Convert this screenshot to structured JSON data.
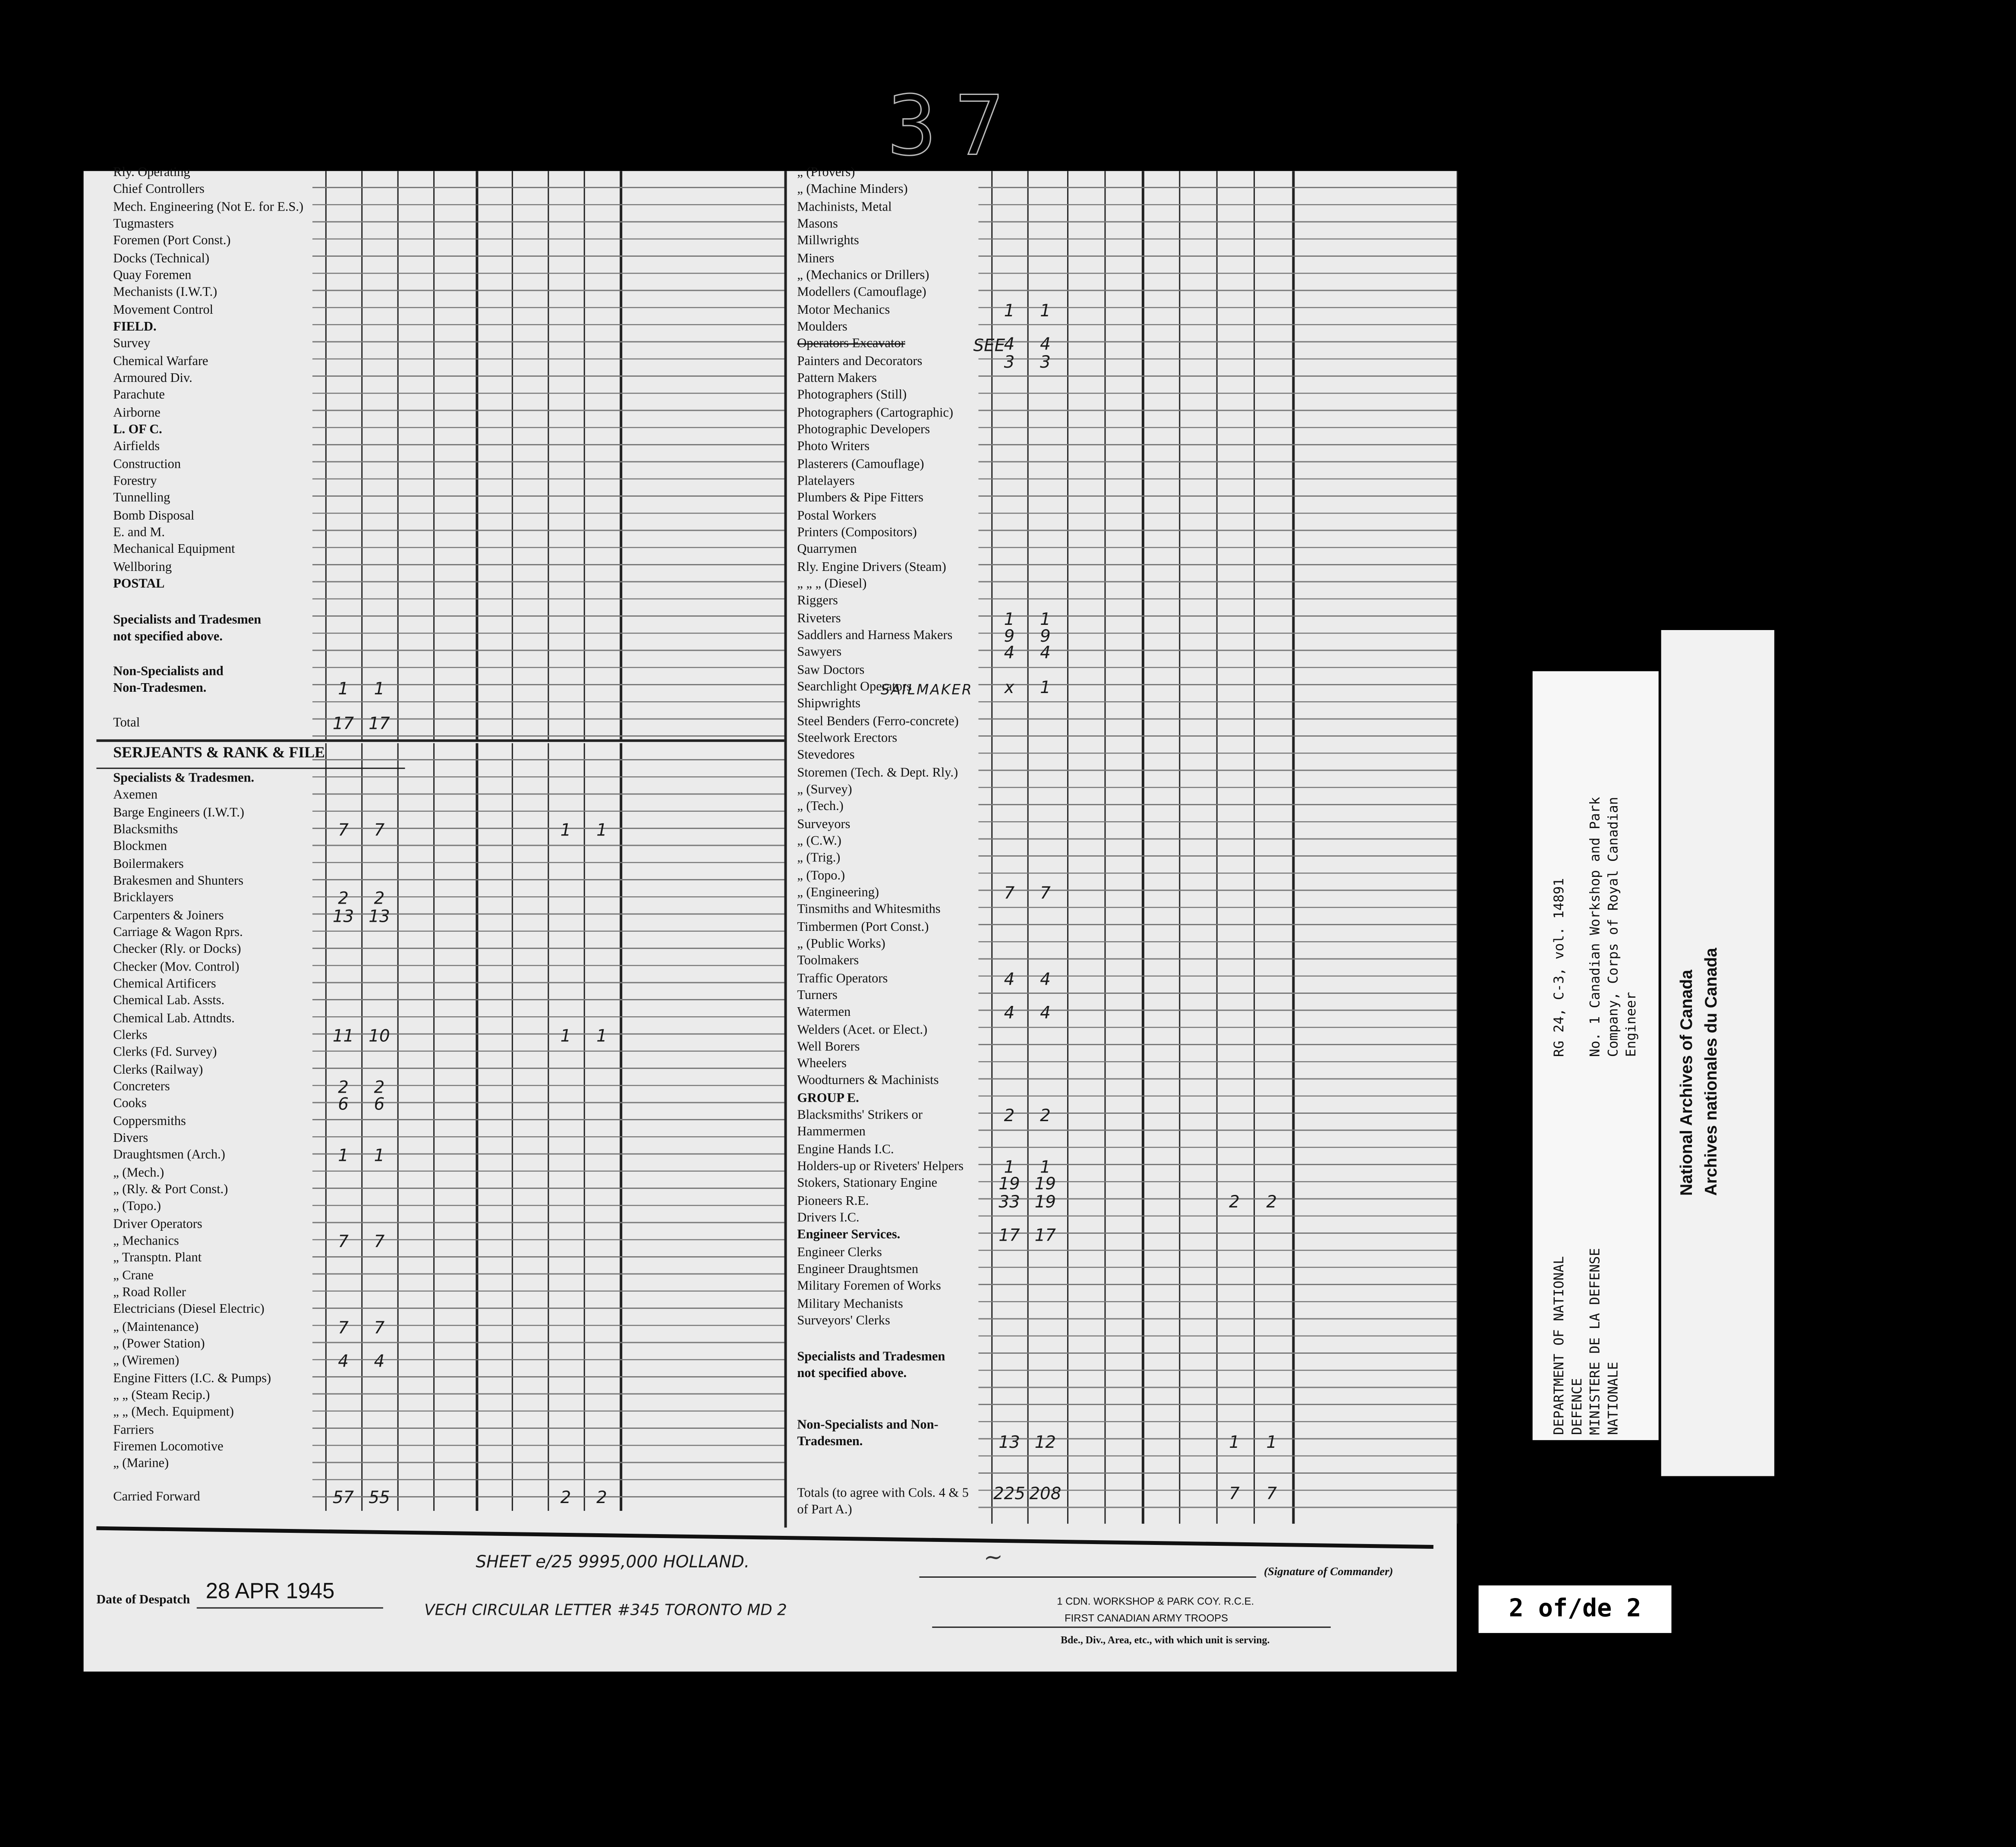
{
  "reel_number": "37",
  "left_groups": {
    "officers_top": [
      {
        "label": "Rly. Operating"
      },
      {
        "label": "Chief Controllers"
      },
      {
        "label": "Mech. Engineering (Not E. for E.S.)"
      },
      {
        "label": "Tugmasters"
      },
      {
        "label": "Foremen (Port Const.)"
      },
      {
        "label": "Docks (Technical)"
      },
      {
        "label": "Quay Foremen"
      },
      {
        "label": "Mechanists (I.W.T.)"
      },
      {
        "label": "Movement Control"
      },
      {
        "label": "FIELD.",
        "bold": true
      },
      {
        "label": "Survey"
      },
      {
        "label": "Chemical Warfare"
      },
      {
        "label": "Armoured Div."
      },
      {
        "label": "Parachute"
      },
      {
        "label": "Airborne"
      },
      {
        "label": "L. OF C.",
        "bold": true
      },
      {
        "label": "Airfields"
      },
      {
        "label": "Construction"
      },
      {
        "label": "Forestry"
      },
      {
        "label": "Tunnelling"
      },
      {
        "label": "Bomb Disposal"
      },
      {
        "label": "E. and M."
      },
      {
        "label": "Mechanical Equipment"
      },
      {
        "label": "Wellboring"
      },
      {
        "label": "POSTAL",
        "bold": true
      }
    ],
    "specialists": [
      {
        "label": "Specialists  and  Tradesmen",
        "bold": true
      },
      {
        "label": "   not specified above.",
        "bold": true
      }
    ],
    "non_specialists": [
      {
        "label": "Non-Specialists and",
        "bold": true
      },
      {
        "label": "   Non-Tradesmen.",
        "bold": true,
        "vals": [
          "1",
          "1"
        ]
      }
    ],
    "total": [
      {
        "label": "Total",
        "vals": [
          "17",
          "17"
        ]
      }
    ],
    "serjeants": [
      {
        "label": "SERJEANTS & RANK & FILE",
        "bold": true
      }
    ],
    "rank_file": [
      {
        "label": "Specialists & Tradesmen.",
        "bold": true
      },
      {
        "label": "Axemen"
      },
      {
        "label": "Barge Engineers (I.W.T.)"
      },
      {
        "label": "Blacksmiths",
        "vals": [
          "7",
          "7",
          "",
          "",
          "",
          "",
          "1",
          "1"
        ]
      },
      {
        "label": "Blockmen"
      },
      {
        "label": "Boilermakers"
      },
      {
        "label": "Brakesmen and Shunters"
      },
      {
        "label": "Bricklayers",
        "vals": [
          "2",
          "2"
        ]
      },
      {
        "label": "Carpenters & Joiners",
        "vals": [
          "13",
          "13"
        ]
      },
      {
        "label": "Carriage & Wagon Rprs."
      },
      {
        "label": "Checker (Rly. or Docks)"
      },
      {
        "label": "Checker (Mov. Control)"
      },
      {
        "label": "Chemical Artificers"
      },
      {
        "label": "Chemical Lab. Assts."
      },
      {
        "label": "Chemical Lab. Attndts."
      },
      {
        "label": "Clerks",
        "vals": [
          "11",
          "10",
          "",
          "",
          "",
          "",
          "1",
          "1"
        ]
      },
      {
        "label": "Clerks (Fd. Survey)"
      },
      {
        "label": "Clerks (Railway)"
      },
      {
        "label": "Concreters",
        "vals": [
          "2",
          "2"
        ]
      },
      {
        "label": "Cooks",
        "vals": [
          "6",
          "6"
        ]
      },
      {
        "label": "Coppersmiths"
      },
      {
        "label": "Divers"
      },
      {
        "label": "Draughtsmen (Arch.)",
        "vals": [
          "1",
          "1"
        ]
      },
      {
        "label": "     „        (Mech.)"
      },
      {
        "label": "     „        (Rly. & Port Const.)"
      },
      {
        "label": "     „        (Topo.)"
      },
      {
        "label": "Driver Operators"
      },
      {
        "label": "  „    Mechanics",
        "vals": [
          "7",
          "7"
        ]
      },
      {
        "label": "  „    Transptn. Plant"
      },
      {
        "label": "  „    Crane"
      },
      {
        "label": "  „    Road Roller"
      },
      {
        "label": "Electricians (Diesel Electric)"
      },
      {
        "label": "     „        (Maintenance)",
        "vals": [
          "7",
          "7"
        ]
      },
      {
        "label": "     „        (Power Station)"
      },
      {
        "label": "     „        (Wiremen)",
        "vals": [
          "4",
          "4"
        ]
      },
      {
        "label": "Engine Fitters (I.C. & Pumps)"
      },
      {
        "label": "     „     „   (Steam Recip.)"
      },
      {
        "label": "     „     „   (Mech. Equipment)"
      },
      {
        "label": "Farriers"
      },
      {
        "label": "Firemen Locomotive"
      },
      {
        "label": "     „      (Marine)"
      }
    ],
    "carried_forward": [
      {
        "label": "Carried Forward",
        "vals": [
          "57",
          "55",
          "",
          "",
          "",
          "",
          "2",
          "2"
        ]
      }
    ]
  },
  "right_groups": {
    "trades": [
      {
        "label": "     „       (Provers)"
      },
      {
        "label": "     „       (Machine Minders)"
      },
      {
        "label": "Machinists, Metal"
      },
      {
        "label": "Masons"
      },
      {
        "label": "Millwrights"
      },
      {
        "label": "Miners"
      },
      {
        "label": "     „     (Mechanics or Drillers)"
      },
      {
        "label": "Modellers (Camouflage)"
      },
      {
        "label": "Motor Mechanics",
        "vals": [
          "1",
          "1"
        ]
      },
      {
        "label": "Moulders"
      },
      {
        "label": "Operators Excavator",
        "strike": true,
        "vals": [
          "4",
          "4"
        ]
      },
      {
        "label": "Painters and Decorators",
        "vals": [
          "3",
          "3"
        ]
      },
      {
        "label": "Pattern Makers"
      },
      {
        "label": "Photographers (Still)"
      },
      {
        "label": "Photographers (Cartographic)"
      },
      {
        "label": "Photographic Developers"
      },
      {
        "label": "Photo Writers"
      },
      {
        "label": "Plasterers (Camouflage)"
      },
      {
        "label": "Platelayers"
      },
      {
        "label": "Plumbers & Pipe Fitters"
      },
      {
        "label": "Postal Workers"
      },
      {
        "label": "Printers (Compositors)"
      },
      {
        "label": "Quarrymen"
      },
      {
        "label": "Rly. Engine Drivers (Steam)"
      },
      {
        "label": "  „     „       „    (Diesel)"
      },
      {
        "label": "Riggers"
      },
      {
        "label": "Riveters",
        "vals": [
          "1",
          "1"
        ]
      },
      {
        "label": "Saddlers and Harness Makers",
        "vals": [
          "9",
          "9"
        ]
      },
      {
        "label": "Sawyers",
        "vals": [
          "4",
          "4"
        ]
      },
      {
        "label": "Saw Doctors"
      },
      {
        "label": "Searchlight Operators",
        "vals": [
          "x",
          "1"
        ]
      },
      {
        "label": "Shipwrights"
      },
      {
        "label": "Steel Benders (Ferro-concrete)"
      },
      {
        "label": "Steelwork Erectors"
      },
      {
        "label": "Stevedores"
      },
      {
        "label": "Storemen (Tech. & Dept. Rly.)"
      },
      {
        "label": "     „     (Survey)"
      },
      {
        "label": "     „     (Tech.)"
      },
      {
        "label": "Surveyors"
      },
      {
        "label": "     „     (C.W.)"
      },
      {
        "label": "     „     (Trig.)"
      },
      {
        "label": "     „     (Topo.)"
      },
      {
        "label": "     „     (Engineering)",
        "vals": [
          "7",
          "7"
        ]
      },
      {
        "label": "Tinsmiths and Whitesmiths"
      },
      {
        "label": "Timbermen (Port Const.)"
      },
      {
        "label": "     „     (Public Works)"
      },
      {
        "label": "Toolmakers"
      },
      {
        "label": "Traffic Operators",
        "vals": [
          "4",
          "4"
        ]
      },
      {
        "label": "Turners"
      },
      {
        "label": "Watermen",
        "vals": [
          "4",
          "4"
        ]
      },
      {
        "label": "Welders (Acet. or Elect.)"
      },
      {
        "label": "Well Borers"
      },
      {
        "label": "Wheelers"
      },
      {
        "label": "Woodturners & Machinists"
      },
      {
        "label": "GROUP E.",
        "bold": true
      },
      {
        "label": "Blacksmiths' Strikers or",
        "vals": [
          "2",
          "2"
        ]
      },
      {
        "label": "     Hammermen"
      },
      {
        "label": "Engine Hands I.C."
      },
      {
        "label": "Holders-up or Riveters' Helpers",
        "vals": [
          "1",
          "1"
        ]
      },
      {
        "label": "Stokers, Stationary Engine",
        "vals": [
          "19",
          "19"
        ]
      },
      {
        "label": "Pioneers R.E.",
        "vals": [
          "33",
          "19",
          "",
          "",
          "",
          "",
          "2",
          "2"
        ]
      },
      {
        "label": "Drivers I.C."
      },
      {
        "label": "Engineer Services.",
        "bold": true,
        "vals": [
          "17",
          "17"
        ]
      },
      {
        "label": "Engineer Clerks"
      },
      {
        "label": "Engineer Draughtsmen"
      },
      {
        "label": "Military Foremen of Works"
      },
      {
        "label": "Military Mechanists"
      },
      {
        "label": "Surveyors' Clerks"
      }
    ],
    "specialists": [
      {
        "label": "Specialists  and  Tradesmen",
        "bold": true
      },
      {
        "label": "   not specified above.",
        "bold": true
      }
    ],
    "non_specialists": [
      {
        "label": "Non-Specialists and Non-",
        "bold": true
      },
      {
        "label": "   Tradesmen.",
        "bold": true,
        "vals": [
          "13",
          "12",
          "",
          "",
          "",
          "",
          "1",
          "1"
        ]
      }
    ],
    "totals": [
      {
        "label": "Totals (to agree with Cols. 4 & 5",
        "vals": [
          "225",
          "208",
          "",
          "",
          "",
          "",
          "7",
          "7"
        ]
      },
      {
        "label": "   of Part A.)"
      }
    ]
  },
  "handwritten": {
    "see_note": "SEE",
    "sailmaker_note": "SAILMAKER",
    "sheet_note": "SHEET e/25 9995,000 HOLLAND.",
    "letter_note": "VECH CIRCULAR LETTER #345 TORONTO MD 2"
  },
  "footer": {
    "date_label": "Date of Despatch",
    "date_value": "28 APR 1945",
    "signature_label": "(Signature of Commander)",
    "stamp_line1": "1 CDN. WORKSHOP & PARK COY. R.C.E.",
    "stamp_line2": "FIRST CANADIAN ARMY TROOPS",
    "formation_label": "Bde., Div., Area, etc., with which unit is serving."
  },
  "archive_card": {
    "dept_line1": "DEPARTMENT OF NATIONAL",
    "dept_line2": "DEFENCE",
    "dept_line3": "MINISTERE DE LA DEFENSE",
    "dept_line4": "NATIONALE",
    "reference": "RG 24, C-3, vol. 14891",
    "unit_line1": "No. 1 Canadian Workshop and Park",
    "unit_line2": "Company, Corps of Royal Canadian",
    "unit_line3": "Engineer",
    "archives_en": "National Archives of Canada",
    "archives_fr": "Archives nationales du Canada"
  },
  "page_marker": "2 of/de 2"
}
